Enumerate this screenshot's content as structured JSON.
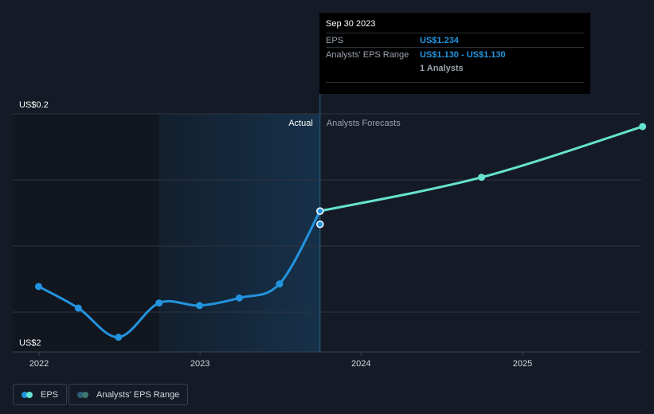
{
  "chart_data": {
    "type": "line",
    "x_ticks": [
      "2022",
      "2023",
      "2024",
      "2025"
    ],
    "y_ticks": [
      "US$0.2",
      "US$2"
    ],
    "ylim": [
      0.2,
      2.0
    ],
    "divider_labels": {
      "actual": "Actual",
      "forecast": "Analysts Forecasts"
    },
    "series": [
      {
        "name": "EPS",
        "color": "#2394df",
        "points": [
          {
            "x": "2021-12-31",
            "y": 0.64
          },
          {
            "x": "2022-03-31",
            "y": 0.47
          },
          {
            "x": "2022-06-30",
            "y": 0.24
          },
          {
            "x": "2022-09-30",
            "y": 0.51
          },
          {
            "x": "2022-12-31",
            "y": 0.49
          },
          {
            "x": "2023-03-31",
            "y": 0.55
          },
          {
            "x": "2023-06-30",
            "y": 0.66
          },
          {
            "x": "2023-09-30",
            "y": 1.234
          }
        ]
      },
      {
        "name": "Analysts' EPS Range",
        "color": "#65e3ce",
        "points": [
          {
            "x": "2023-09-30",
            "y": 1.234
          },
          {
            "x": "2024-09-30",
            "y": 1.5
          },
          {
            "x": "2025-09-30",
            "y": 1.9
          }
        ]
      }
    ],
    "range_point": {
      "x": "2023-09-30",
      "y": 1.13
    }
  },
  "tooltip": {
    "date": "Sep 30 2023",
    "eps_label": "EPS",
    "eps_value": "US$1.234",
    "range_label": "Analysts' EPS Range",
    "range_value": "US$1.130 - US$1.130",
    "analysts": "1 Analysts"
  },
  "legend": {
    "eps_label": "EPS",
    "range_label": "Analysts' EPS Range",
    "eps_colors": [
      "#2394df",
      "#65e3ce"
    ],
    "range_colors": [
      "#2f5d7a",
      "#3b7a72"
    ]
  },
  "colors": {
    "background": "#151b26",
    "past_shade": "#11161f",
    "highlight": "#16314a",
    "grid": "#2e3440",
    "divider": "#2c5f86"
  }
}
